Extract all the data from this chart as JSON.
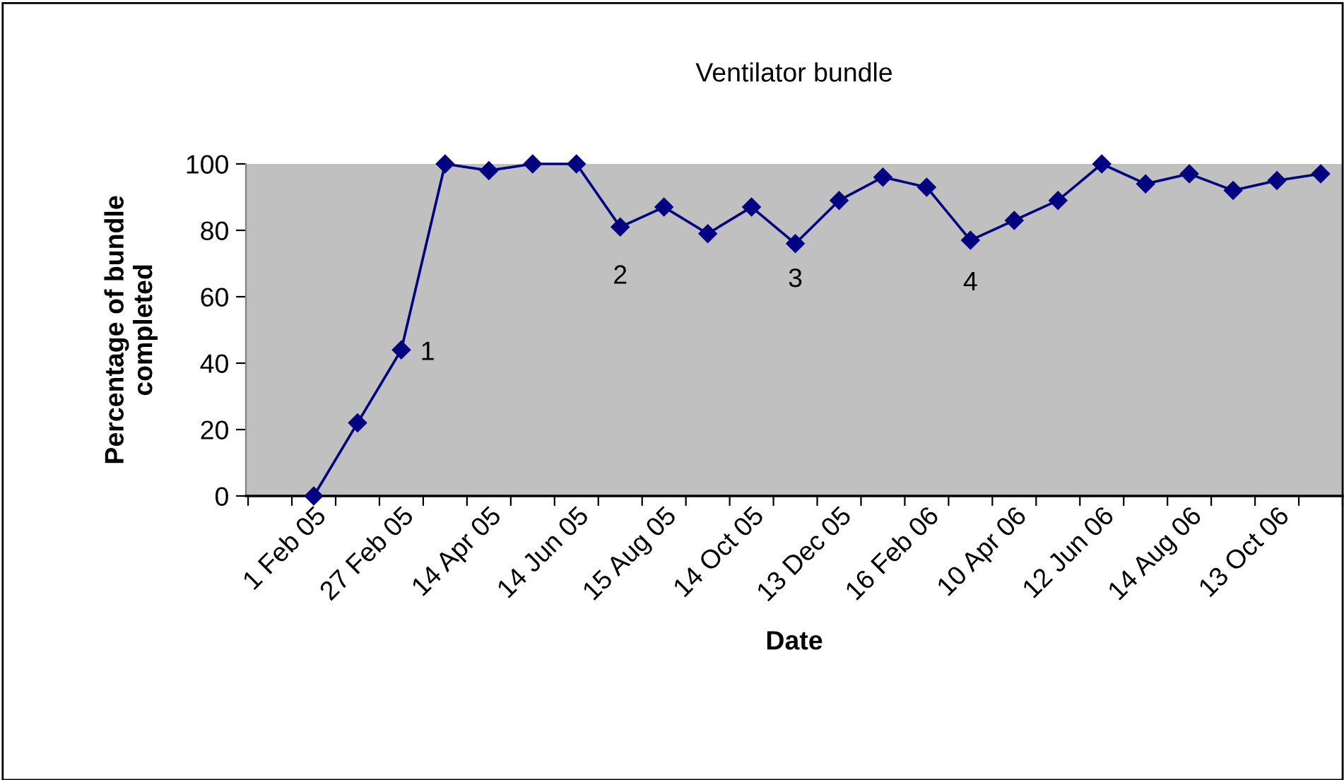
{
  "chart_data": {
    "type": "line",
    "title": "Ventilator bundle",
    "xlabel": "Date",
    "ylabel": "Percentage of bundle\ncompleted",
    "categories": [
      "1 Feb 05",
      null,
      "27 Feb 05",
      null,
      "14 Apr 05",
      null,
      "14 Jun 05",
      null,
      "15 Aug 05",
      null,
      "14 Oct 05",
      null,
      "13 Dec 05",
      null,
      "16 Feb 06",
      null,
      "10 Apr 06",
      null,
      "12 Jun 06",
      null,
      "14 Aug 06",
      null,
      "13 Oct 06",
      null
    ],
    "series": [
      {
        "color": "#000080",
        "values": [
          0,
          22,
          44,
          100,
          98,
          100,
          100,
          81,
          87,
          79,
          87,
          76,
          89,
          96,
          93,
          77,
          83,
          89,
          100,
          94,
          97,
          92,
          95,
          97
        ]
      }
    ],
    "ylim": [
      0,
      100
    ],
    "yticks": [
      0,
      20,
      40,
      60,
      80,
      100
    ],
    "marker": "diamond",
    "line_style": "solid",
    "grid": false,
    "legend": false,
    "annotations": [
      "1",
      "2",
      "3",
      "4"
    ]
  }
}
